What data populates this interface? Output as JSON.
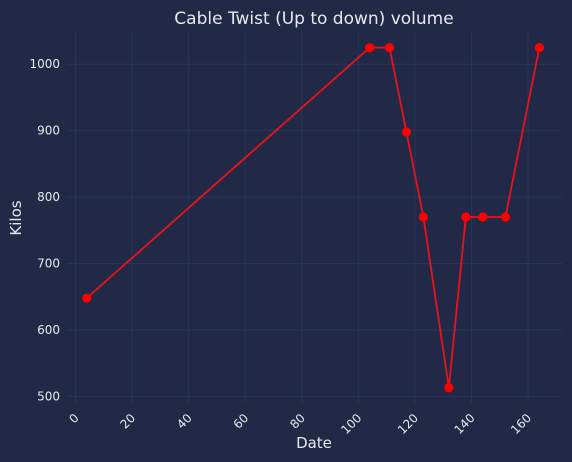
{
  "chart_data": {
    "type": "line",
    "title": "Cable Twist (Up to down) volume",
    "xlabel": "Date",
    "ylabel": "Kilos",
    "xlim": [
      -3,
      172
    ],
    "ylim": [
      490,
      1050
    ],
    "xticks": [
      0,
      20,
      40,
      60,
      80,
      100,
      120,
      140,
      160
    ],
    "yticks": [
      500,
      600,
      700,
      800,
      900,
      1000
    ],
    "grid": true,
    "series": [
      {
        "x": [
          4,
          104,
          111,
          117,
          123,
          132,
          138,
          144,
          152,
          164
        ],
        "y": [
          648,
          1025,
          1025,
          898,
          770,
          513,
          770,
          770,
          770,
          1025
        ]
      }
    ],
    "colors": {
      "background": "#212946",
      "grid": "#2A3459",
      "line": "#E8141A",
      "marker": "#FF0000",
      "text": "#E8E8EE"
    }
  }
}
